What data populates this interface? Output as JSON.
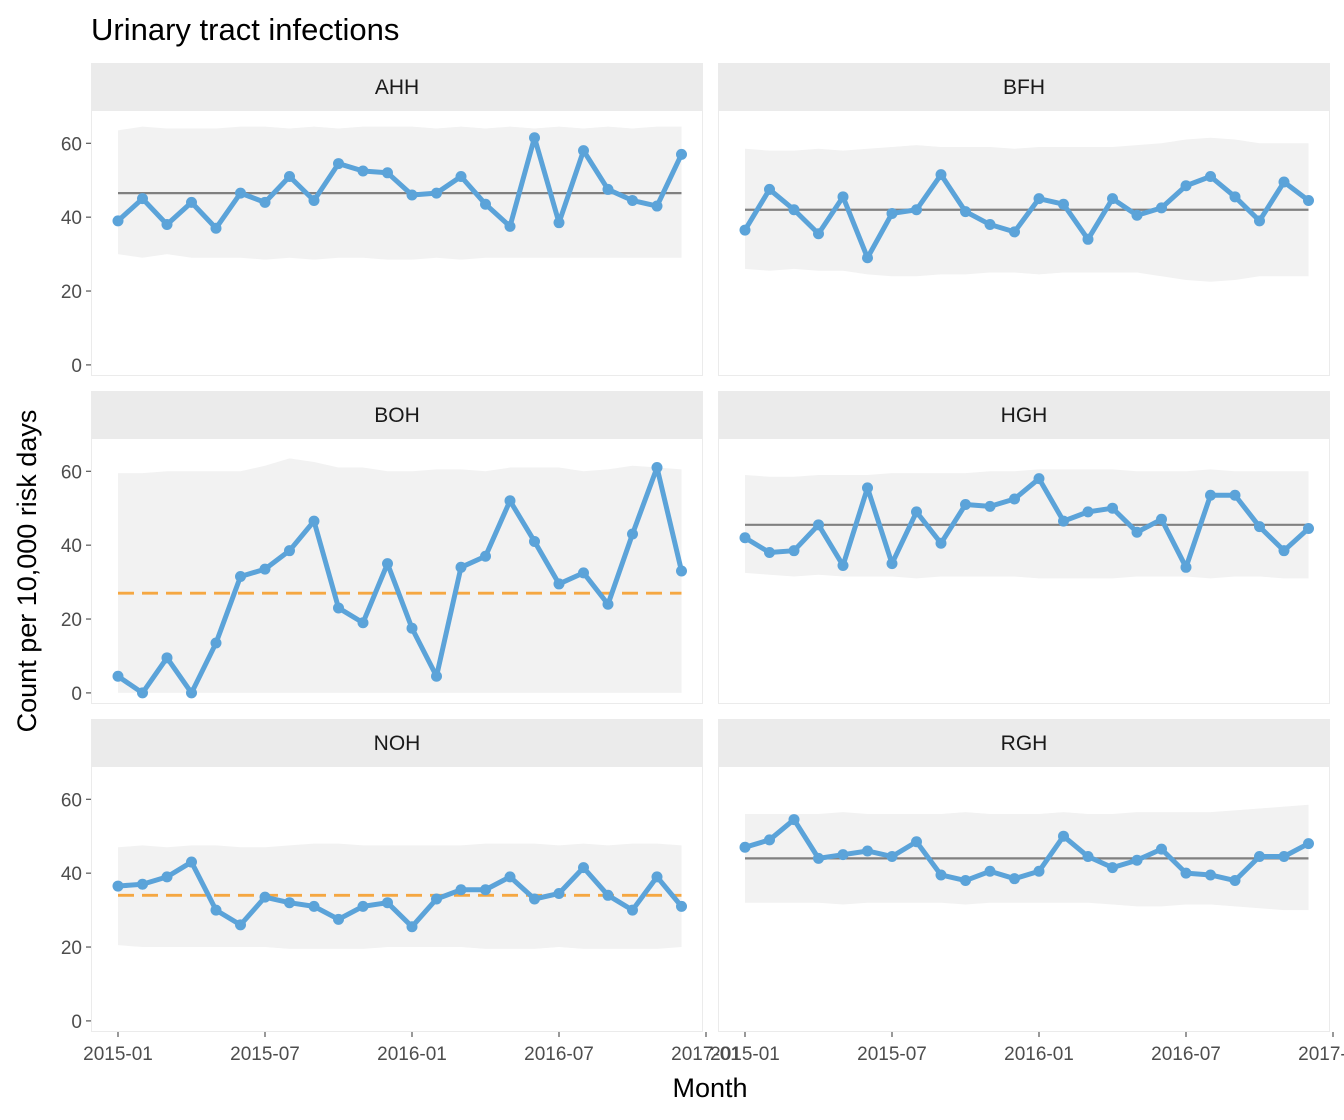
{
  "chart_data": {
    "type": "line",
    "title": "Urinary tract infections",
    "xlabel": "Month",
    "ylabel": "Count per 10,000 risk days",
    "ylim": [
      -3,
      69
    ],
    "yticks": [
      0,
      20,
      40,
      60
    ],
    "xticks": [
      "2015-01",
      "2015-07",
      "2016-01",
      "2016-07",
      "2017-01"
    ],
    "x": [
      "2015-01",
      "2015-02",
      "2015-03",
      "2015-04",
      "2015-05",
      "2015-06",
      "2015-07",
      "2015-08",
      "2015-09",
      "2015-10",
      "2015-11",
      "2015-12",
      "2016-01",
      "2016-02",
      "2016-03",
      "2016-04",
      "2016-05",
      "2016-06",
      "2016-07",
      "2016-08",
      "2016-09",
      "2016-10",
      "2016-11",
      "2016-12"
    ],
    "series_color": "#5ba3d9",
    "centre_line_color": "#808080",
    "trial_line_color": "#f5a742",
    "limits_color": "#f2f2f2",
    "strip_color": "#ebebeb",
    "grid": false,
    "panels": [
      {
        "name": "AHH",
        "centre_line": 46.5,
        "centre_line_style": "solid",
        "values": [
          39,
          45,
          38,
          44,
          37,
          46.5,
          44,
          51,
          44.5,
          54.5,
          52.5,
          52,
          46,
          46.5,
          51,
          43.5,
          37.5,
          61.5,
          38.5,
          58,
          47.5,
          44.5,
          43,
          57
        ],
        "upper_limit": [
          63.5,
          64.5,
          64,
          64,
          64,
          64.5,
          64.5,
          64,
          64.5,
          64,
          64.5,
          64.5,
          64.5,
          64,
          64.5,
          64,
          64.5,
          64,
          64.5,
          64,
          64.5,
          64,
          64.5,
          64.5
        ],
        "lower_limit": [
          30,
          29,
          30,
          29,
          29,
          29,
          28.5,
          29,
          28.5,
          29,
          29,
          28.5,
          28.5,
          29,
          28.5,
          29,
          29,
          29,
          29,
          29,
          29,
          29,
          29,
          29
        ]
      },
      {
        "name": "BFH",
        "centre_line": 42,
        "centre_line_style": "solid",
        "values": [
          36.5,
          47.5,
          42,
          35.5,
          45.5,
          29,
          41,
          42,
          51.5,
          41.5,
          38,
          36,
          45,
          43.5,
          34,
          45,
          40.5,
          42.5,
          48.5,
          51,
          45.5,
          39,
          49.5,
          44.5
        ],
        "upper_limit": [
          58.5,
          58,
          58,
          58.5,
          58,
          58.5,
          59,
          59.5,
          59,
          59,
          59,
          58.5,
          59,
          59,
          59,
          59,
          59.5,
          60,
          61,
          61.5,
          61,
          60,
          60,
          60
        ],
        "lower_limit": [
          26,
          25.5,
          26,
          25.5,
          25.5,
          24.5,
          24,
          24,
          24.5,
          24.5,
          25,
          25,
          24.5,
          25,
          25,
          25,
          25,
          24,
          23,
          22.5,
          23,
          24,
          24,
          24
        ]
      },
      {
        "name": "BOH",
        "centre_line": 27,
        "centre_line_style": "dashed",
        "values": [
          4.5,
          0,
          9.5,
          0,
          13.5,
          31.5,
          33.5,
          38.5,
          46.5,
          23,
          19,
          35,
          17.5,
          4.5,
          34,
          37,
          52,
          41,
          29.5,
          32.5,
          24,
          43,
          61,
          33
        ],
        "upper_limit": [
          59.5,
          59.5,
          60,
          60,
          60,
          60,
          61.5,
          63.5,
          62.5,
          61,
          61,
          60,
          60,
          60.5,
          60.5,
          60,
          61,
          61,
          61,
          60,
          60.5,
          61.5,
          61,
          60.5
        ],
        "lower_limit": [
          0,
          0,
          0,
          0,
          0,
          0,
          0,
          0,
          0,
          0,
          0,
          0,
          0,
          0,
          0,
          0,
          0,
          0,
          0,
          0,
          0,
          0,
          0,
          0
        ]
      },
      {
        "name": "HGH",
        "centre_line": 45.5,
        "centre_line_style": "solid",
        "values": [
          42,
          38,
          38.5,
          45.5,
          34.5,
          55.5,
          35,
          49,
          40.5,
          51,
          50.5,
          52.5,
          58,
          46.5,
          49,
          50,
          43.5,
          47,
          34,
          53.5,
          53.5,
          45,
          38.5,
          44.5
        ],
        "upper_limit": [
          59,
          58.5,
          58.5,
          59,
          59,
          59,
          59.5,
          59.5,
          59.5,
          59.5,
          60,
          60,
          60.5,
          60.5,
          60.5,
          60.5,
          60,
          60,
          60,
          60.5,
          60,
          60,
          60,
          60
        ],
        "lower_limit": [
          32.5,
          32,
          31.5,
          32,
          31.5,
          31.5,
          31.5,
          31,
          31.5,
          31.5,
          31.5,
          31.5,
          31,
          31,
          31,
          31,
          31.5,
          31.5,
          31.5,
          31,
          31.5,
          31.5,
          31,
          31
        ]
      },
      {
        "name": "NOH",
        "centre_line": 34,
        "centre_line_style": "dashed",
        "values": [
          36.5,
          37,
          39,
          43,
          30,
          26,
          33.5,
          32,
          31,
          27.5,
          31,
          32,
          25.5,
          33,
          35.5,
          35.5,
          39,
          33,
          34.5,
          41.5,
          34,
          30,
          39,
          31
        ],
        "upper_limit": [
          47,
          47.5,
          47,
          47.5,
          47.5,
          47,
          47,
          47.5,
          48,
          48,
          47.5,
          47.5,
          47.5,
          47.5,
          47.5,
          48,
          48,
          48,
          47.5,
          48,
          47.5,
          48,
          48,
          47.5
        ],
        "lower_limit": [
          20.5,
          20,
          20,
          20,
          20,
          20,
          20,
          19.5,
          19.5,
          19.5,
          19.5,
          20,
          20,
          20,
          20,
          19.5,
          19.5,
          19.5,
          20,
          19.5,
          19.5,
          19.5,
          19.5,
          20
        ]
      },
      {
        "name": "RGH",
        "centre_line": 44,
        "centre_line_style": "solid",
        "values": [
          47,
          49,
          54.5,
          44,
          45,
          46,
          44.5,
          48.5,
          39.5,
          38,
          40.5,
          38.5,
          40.5,
          50,
          44.5,
          41.5,
          43.5,
          46.5,
          40,
          39.5,
          38,
          44.5,
          44.5,
          48
        ],
        "upper_limit": [
          56,
          56,
          56,
          56,
          56.5,
          56,
          56,
          56,
          56,
          56.5,
          56,
          56,
          56,
          56.5,
          56,
          56,
          56.5,
          56.5,
          56.5,
          56.5,
          57,
          57.5,
          58,
          58.5
        ],
        "lower_limit": [
          32,
          32,
          32,
          32,
          31.5,
          32,
          32,
          32,
          32,
          31.5,
          32,
          32,
          32,
          32,
          32,
          31.5,
          31,
          31,
          31.5,
          31.5,
          31,
          30.5,
          30,
          30
        ]
      }
    ]
  }
}
